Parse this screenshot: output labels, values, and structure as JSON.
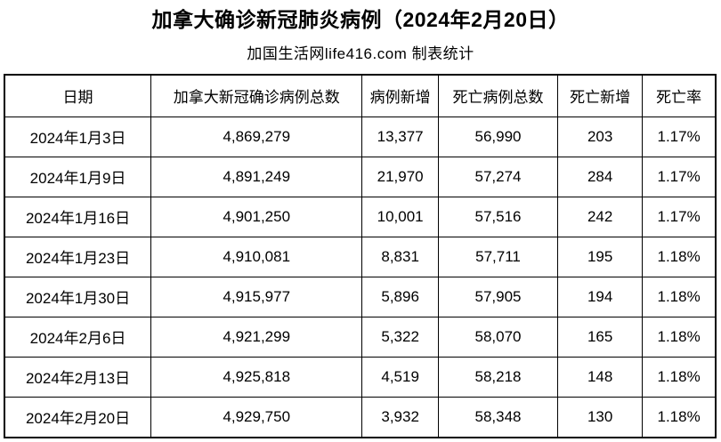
{
  "page": {
    "title": "加拿大确诊新冠肺炎病例（2024年2月20日）",
    "subtitle": "加国生活网life416.com 制表统计"
  },
  "colors": {
    "background": "#ffffff",
    "text": "#000000",
    "border": "#000000"
  },
  "chart_data": {
    "type": "table",
    "title": "加拿大确诊新冠肺炎病例（2024年2月20日）",
    "subtitle": "加国生活网life416.com 制表统计",
    "columns": [
      "日期",
      "加拿大新冠确诊病例总数",
      "病例新增",
      "死亡病例总数",
      "死亡新增",
      "死亡率"
    ],
    "rows": [
      [
        "2024年1月3日",
        "4,869,279",
        "13,377",
        "56,990",
        "203",
        "1.17%"
      ],
      [
        "2024年1月9日",
        "4,891,249",
        "21,970",
        "57,274",
        "284",
        "1.17%"
      ],
      [
        "2024年1月16日",
        "4,901,250",
        "10,001",
        "57,516",
        "242",
        "1.17%"
      ],
      [
        "2024年1月23日",
        "4,910,081",
        "8,831",
        "57,711",
        "195",
        "1.18%"
      ],
      [
        "2024年1月30日",
        "4,915,977",
        "5,896",
        "57,905",
        "194",
        "1.18%"
      ],
      [
        "2024年2月6日",
        "4,921,299",
        "5,322",
        "58,070",
        "165",
        "1.18%"
      ],
      [
        "2024年2月13日",
        "4,925,818",
        "4,519",
        "58,218",
        "148",
        "1.18%"
      ],
      [
        "2024年2月20日",
        "4,929,750",
        "3,932",
        "58,348",
        "130",
        "1.18%"
      ]
    ]
  }
}
